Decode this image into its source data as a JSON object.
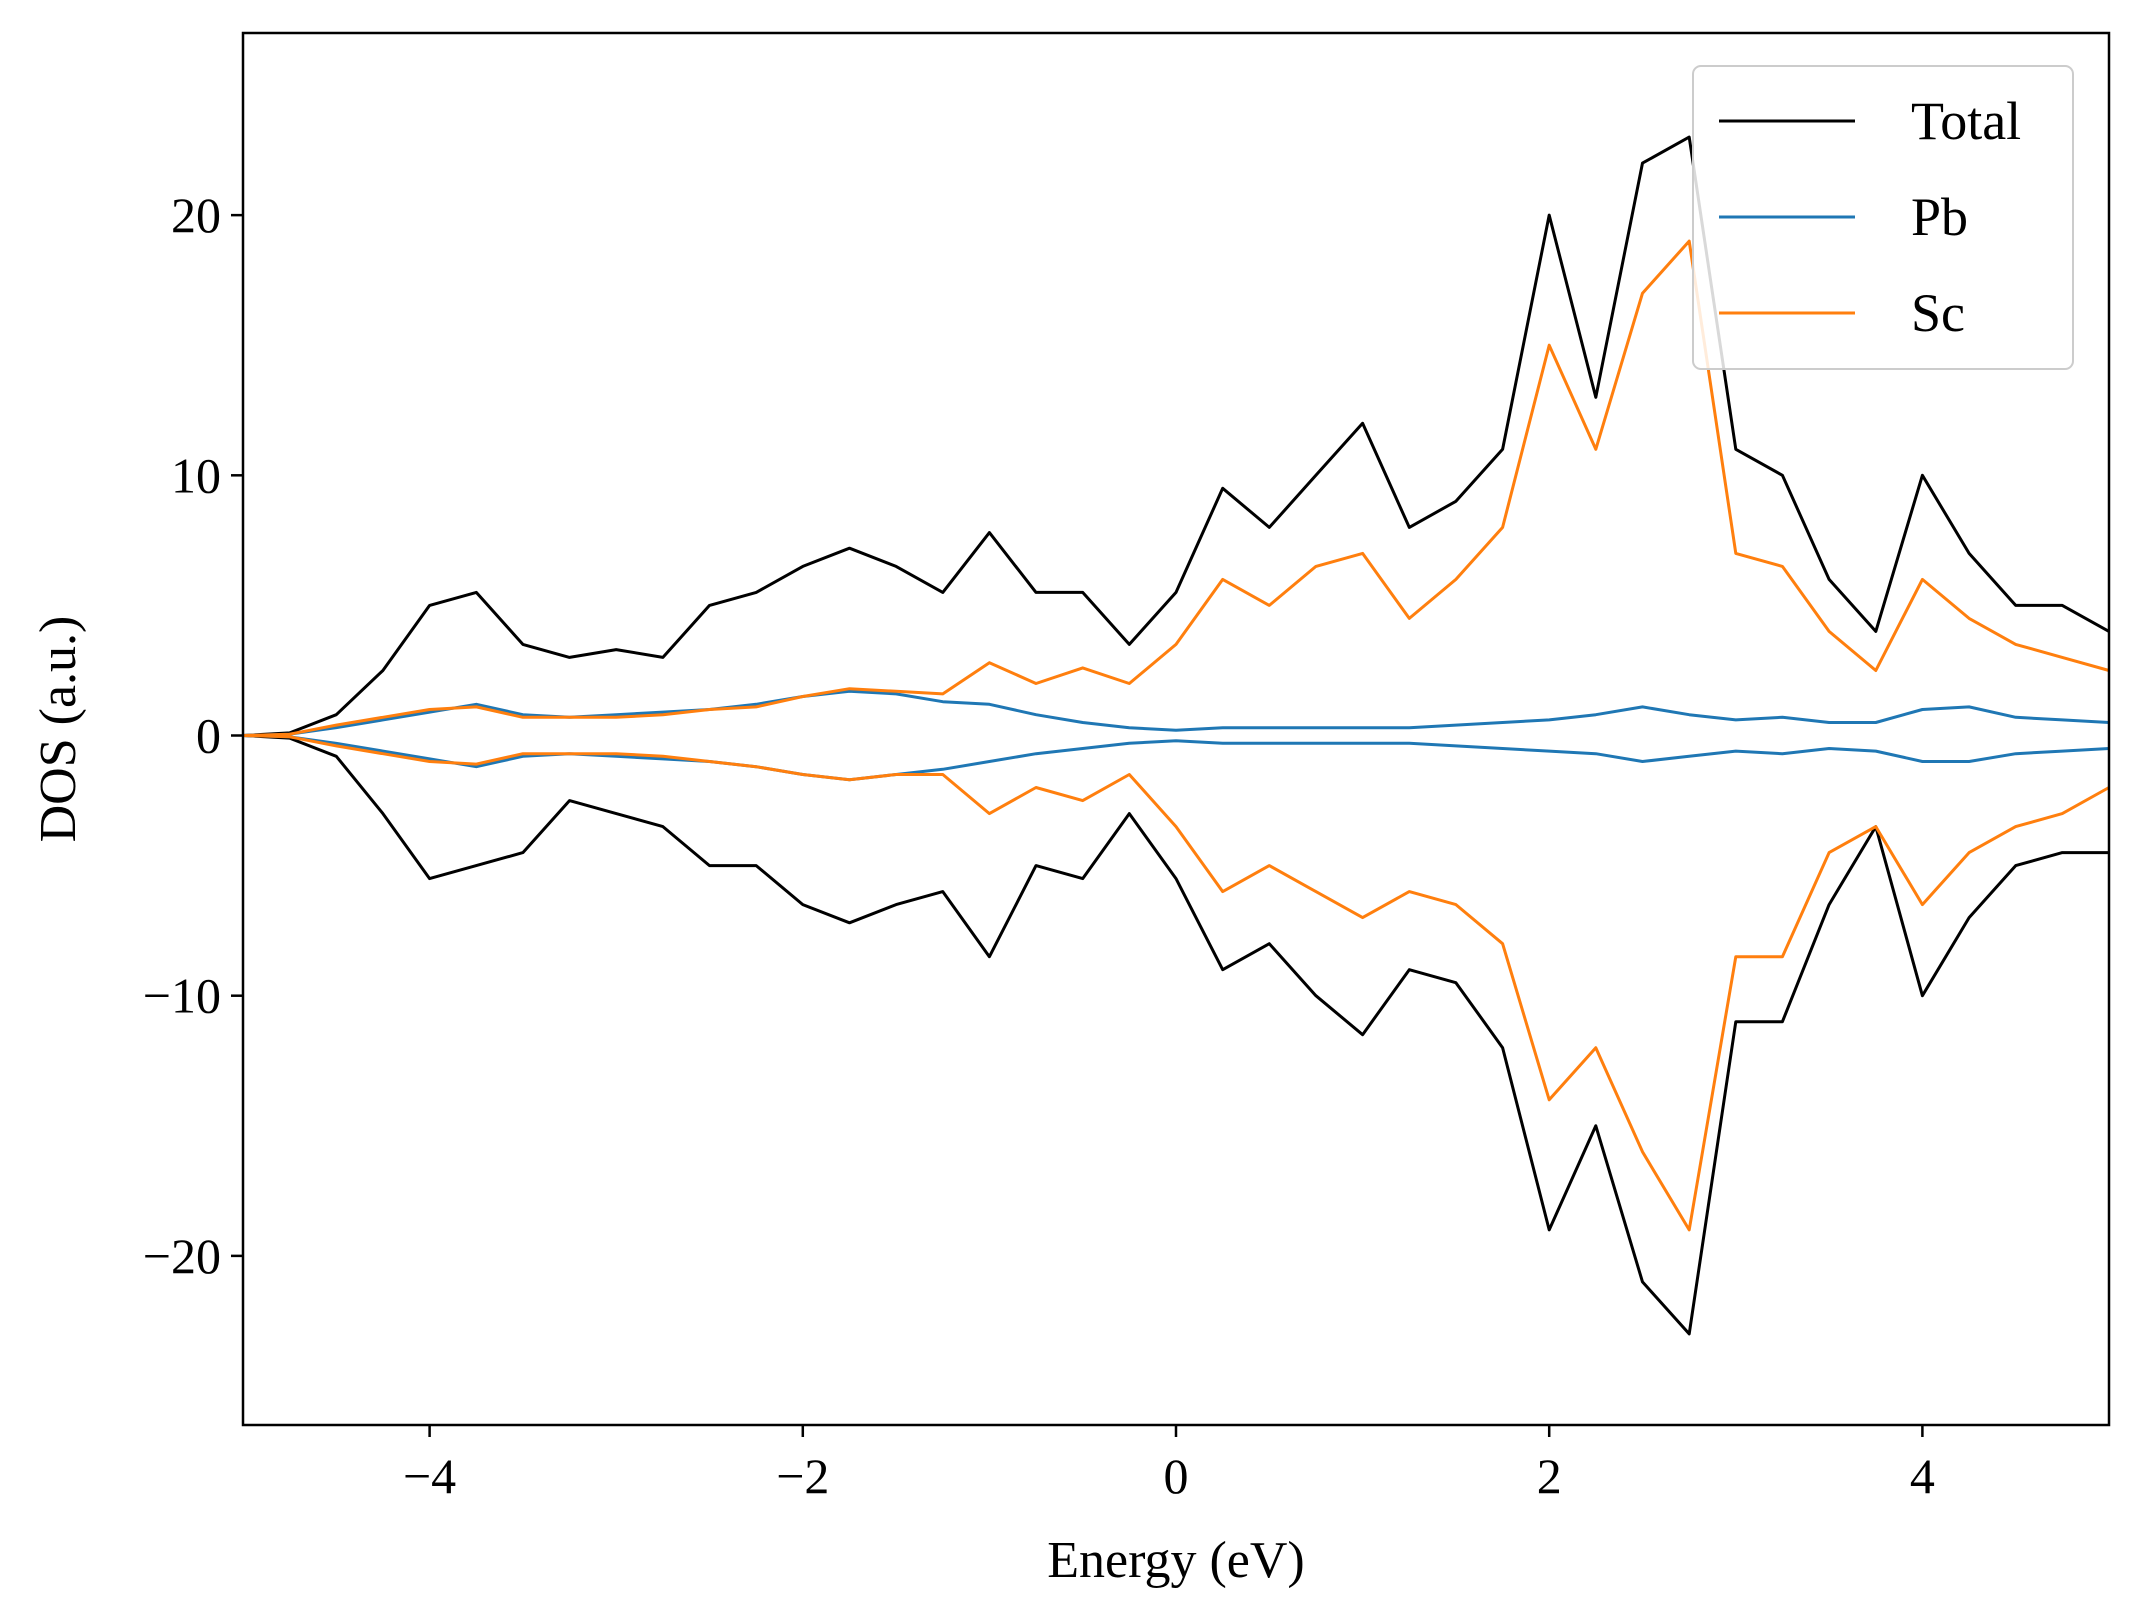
{
  "chart_data": {
    "type": "line",
    "title": "",
    "xlabel": "Energy (eV)",
    "ylabel": "DOS (a.u.)",
    "xlim": [
      -5,
      5
    ],
    "ylim": [
      -26.5,
      27
    ],
    "xticks": [
      -4,
      -2,
      0,
      2,
      4
    ],
    "yticks": [
      -20,
      -10,
      0,
      10,
      20
    ],
    "xtick_labels": [
      "−4",
      "−2",
      "0",
      "2",
      "4"
    ],
    "ytick_labels": [
      "−20",
      "−10",
      "0",
      "10",
      "20"
    ],
    "grid": false,
    "legend_position": "top-right",
    "x": [
      -5.0,
      -4.75,
      -4.5,
      -4.25,
      -4.0,
      -3.75,
      -3.5,
      -3.25,
      -3.0,
      -2.75,
      -2.5,
      -2.25,
      -2.0,
      -1.75,
      -1.5,
      -1.25,
      -1.0,
      -0.75,
      -0.5,
      -0.25,
      0.0,
      0.25,
      0.5,
      0.75,
      1.0,
      1.25,
      1.5,
      1.75,
      2.0,
      2.25,
      2.5,
      2.75,
      3.0,
      3.25,
      3.5,
      3.75,
      4.0,
      4.25,
      4.5,
      4.75,
      5.0
    ],
    "series": [
      {
        "name": "Total",
        "color": "#000000",
        "values_up": [
          0.0,
          0.1,
          0.8,
          2.5,
          5.0,
          5.5,
          3.5,
          3.0,
          3.3,
          3.0,
          5.0,
          5.5,
          6.5,
          7.2,
          6.5,
          5.5,
          7.8,
          5.5,
          5.5,
          3.5,
          5.5,
          9.5,
          8.0,
          10.0,
          12.0,
          8.0,
          9.0,
          11.0,
          20.0,
          13.0,
          22.0,
          23.0,
          11.0,
          10.0,
          6.0,
          4.0,
          10.0,
          7.0,
          5.0,
          5.0,
          4.0
        ],
        "values_down": [
          0.0,
          -0.1,
          -0.8,
          -3.0,
          -5.5,
          -5.0,
          -4.5,
          -2.5,
          -3.0,
          -3.5,
          -5.0,
          -5.0,
          -6.5,
          -7.2,
          -6.5,
          -6.0,
          -8.5,
          -5.0,
          -5.5,
          -3.0,
          -5.5,
          -9.0,
          -8.0,
          -10.0,
          -11.5,
          -9.0,
          -9.5,
          -12.0,
          -19.0,
          -15.0,
          -21.0,
          -23.0,
          -11.0,
          -11.0,
          -6.5,
          -3.5,
          -10.0,
          -7.0,
          -5.0,
          -4.5,
          -4.5
        ]
      },
      {
        "name": "Pb",
        "color": "#1f77b4",
        "values_up": [
          0.0,
          0.05,
          0.3,
          0.6,
          0.9,
          1.2,
          0.8,
          0.7,
          0.8,
          0.9,
          1.0,
          1.2,
          1.5,
          1.7,
          1.6,
          1.3,
          1.2,
          0.8,
          0.5,
          0.3,
          0.2,
          0.3,
          0.3,
          0.3,
          0.3,
          0.3,
          0.4,
          0.5,
          0.6,
          0.8,
          1.1,
          0.8,
          0.6,
          0.7,
          0.5,
          0.5,
          1.0,
          1.1,
          0.7,
          0.6,
          0.5
        ],
        "values_down": [
          0.0,
          -0.05,
          -0.3,
          -0.6,
          -0.9,
          -1.2,
          -0.8,
          -0.7,
          -0.8,
          -0.9,
          -1.0,
          -1.2,
          -1.5,
          -1.7,
          -1.5,
          -1.3,
          -1.0,
          -0.7,
          -0.5,
          -0.3,
          -0.2,
          -0.3,
          -0.3,
          -0.3,
          -0.3,
          -0.3,
          -0.4,
          -0.5,
          -0.6,
          -0.7,
          -1.0,
          -0.8,
          -0.6,
          -0.7,
          -0.5,
          -0.6,
          -1.0,
          -1.0,
          -0.7,
          -0.6,
          -0.5
        ]
      },
      {
        "name": "Sc",
        "color": "#ff7f0e",
        "values_up": [
          0.0,
          0.05,
          0.4,
          0.7,
          1.0,
          1.1,
          0.7,
          0.7,
          0.7,
          0.8,
          1.0,
          1.1,
          1.5,
          1.8,
          1.7,
          1.6,
          2.8,
          2.0,
          2.6,
          2.0,
          3.5,
          6.0,
          5.0,
          6.5,
          7.0,
          4.5,
          6.0,
          8.0,
          15.0,
          11.0,
          17.0,
          19.0,
          7.0,
          6.5,
          4.0,
          2.5,
          6.0,
          4.5,
          3.5,
          3.0,
          2.5
        ],
        "values_down": [
          0.0,
          -0.05,
          -0.4,
          -0.7,
          -1.0,
          -1.1,
          -0.7,
          -0.7,
          -0.7,
          -0.8,
          -1.0,
          -1.2,
          -1.5,
          -1.7,
          -1.5,
          -1.5,
          -3.0,
          -2.0,
          -2.5,
          -1.5,
          -3.5,
          -6.0,
          -5.0,
          -6.0,
          -7.0,
          -6.0,
          -6.5,
          -8.0,
          -14.0,
          -12.0,
          -16.0,
          -19.0,
          -8.5,
          -8.5,
          -4.5,
          -3.5,
          -6.5,
          -4.5,
          -3.5,
          -3.0,
          -2.0
        ]
      }
    ]
  }
}
